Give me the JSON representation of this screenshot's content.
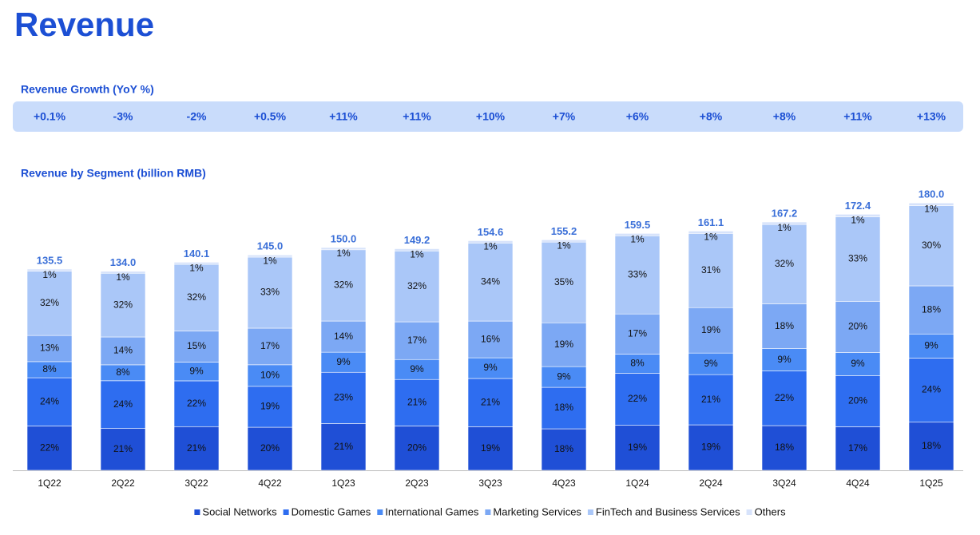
{
  "title": "Revenue",
  "growth": {
    "title": "Revenue Growth (YoY %)",
    "values": [
      0.1,
      -3,
      -2,
      0.5,
      11,
      11,
      10,
      7,
      6,
      8,
      8,
      11,
      13
    ],
    "value_labels": [
      "+0.1%",
      "-3%",
      "-2%",
      "+0.5%",
      "+11%",
      "+11%",
      "+10%",
      "+7%",
      "+6%",
      "+8%",
      "+8%",
      "+11%",
      "+13%"
    ]
  },
  "chart_data": {
    "type": "bar",
    "stacked": true,
    "title": "Revenue by Segment (billion RMB)",
    "categories": [
      "1Q22",
      "2Q22",
      "3Q22",
      "4Q22",
      "1Q23",
      "2Q23",
      "3Q23",
      "4Q23",
      "1Q24",
      "2Q24",
      "3Q24",
      "4Q24",
      "1Q25"
    ],
    "series": [
      {
        "name": "Social Networks",
        "color": "#1f4fd6",
        "values": [
          22,
          21,
          21,
          20,
          21,
          20,
          19,
          18,
          19,
          19,
          18,
          17,
          18
        ],
        "value_labels": [
          "22%",
          "21%",
          "21%",
          "20%",
          "21%",
          "20%",
          "19%",
          "18%",
          "19%",
          "19%",
          "18%",
          "17%",
          "18%"
        ]
      },
      {
        "name": "Domestic Games",
        "color": "#2e6df0",
        "values": [
          24,
          24,
          22,
          19,
          23,
          21,
          21,
          18,
          22,
          21,
          22,
          20,
          24
        ],
        "value_labels": [
          "24%",
          "24%",
          "22%",
          "19%",
          "23%",
          "21%",
          "21%",
          "18%",
          "22%",
          "21%",
          "22%",
          "20%",
          "24%"
        ]
      },
      {
        "name": "International Games",
        "color": "#4a8bf5",
        "values": [
          8,
          8,
          9,
          10,
          9,
          9,
          9,
          9,
          8,
          9,
          9,
          9,
          9
        ],
        "value_labels": [
          "8%",
          "8%",
          "9%",
          "10%",
          "9%",
          "9%",
          "9%",
          "9%",
          "8%",
          "9%",
          "9%",
          "9%",
          "9%"
        ]
      },
      {
        "name": "Marketing Services",
        "color": "#7ca8f4",
        "values": [
          13,
          14,
          15,
          17,
          14,
          17,
          16,
          19,
          17,
          19,
          18,
          20,
          18
        ],
        "value_labels": [
          "13%",
          "14%",
          "15%",
          "17%",
          "14%",
          "17%",
          "16%",
          "19%",
          "17%",
          "19%",
          "18%",
          "20%",
          "18%"
        ]
      },
      {
        "name": "FinTech and Business Services",
        "color": "#aac7f8",
        "values": [
          32,
          32,
          32,
          33,
          32,
          32,
          34,
          35,
          33,
          31,
          32,
          33,
          30
        ],
        "value_labels": [
          "32%",
          "32%",
          "32%",
          "33%",
          "32%",
          "32%",
          "34%",
          "35%",
          "33%",
          "31%",
          "32%",
          "33%",
          "30%"
        ]
      },
      {
        "name": "Others",
        "color": "#d7e3fb",
        "values": [
          1,
          1,
          1,
          1,
          1,
          1,
          1,
          1,
          1,
          1,
          1,
          1,
          1
        ],
        "value_labels": [
          "1%",
          "1%",
          "1%",
          "1%",
          "1%",
          "1%",
          "1%",
          "1%",
          "1%",
          "1%",
          "1%",
          "1%",
          "1%"
        ]
      }
    ],
    "totals": {
      "values": [
        135.5,
        134.0,
        140.1,
        145.0,
        150.0,
        149.2,
        154.6,
        155.2,
        159.5,
        161.1,
        167.2,
        172.4,
        180.0
      ],
      "value_labels": [
        "135.5",
        "134.0",
        "140.1",
        "145.0",
        "150.0",
        "149.2",
        "154.6",
        "155.2",
        "159.5",
        "161.1",
        "167.2",
        "172.4",
        "180.0"
      ]
    }
  }
}
